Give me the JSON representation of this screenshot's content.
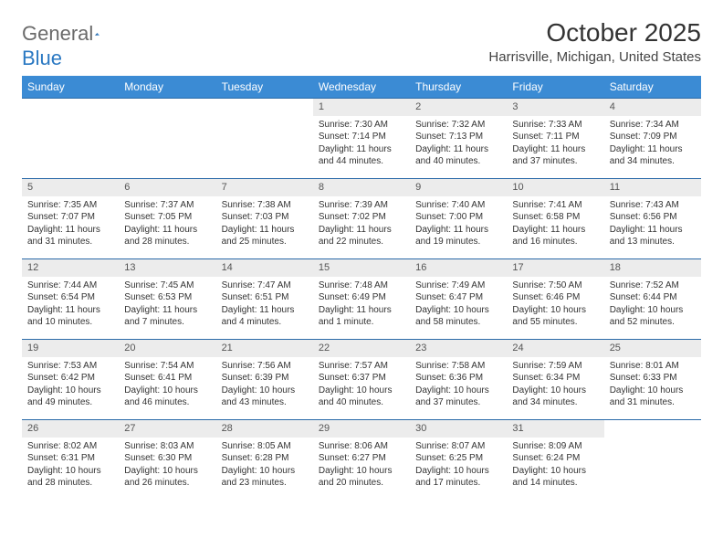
{
  "brand": {
    "word1": "General",
    "word2": "Blue"
  },
  "title": "October 2025",
  "location": "Harrisville, Michigan, United States",
  "colors": {
    "header_bg": "#3b8bd4",
    "header_text": "#ffffff",
    "row_border": "#2a6aa8",
    "daynum_bg": "#ececec",
    "brand_gray": "#6a6a6a",
    "brand_blue": "#2a78c2"
  },
  "typography": {
    "title_fontsize": 28,
    "location_fontsize": 15,
    "header_fontsize": 12,
    "cell_fontsize": 10
  },
  "calendar": {
    "type": "table",
    "columns": [
      "Sunday",
      "Monday",
      "Tuesday",
      "Wednesday",
      "Thursday",
      "Friday",
      "Saturday"
    ],
    "weeks": [
      [
        null,
        null,
        null,
        {
          "n": "1",
          "sr": "Sunrise: 7:30 AM",
          "ss": "Sunset: 7:14 PM",
          "d1": "Daylight: 11 hours",
          "d2": "and 44 minutes."
        },
        {
          "n": "2",
          "sr": "Sunrise: 7:32 AM",
          "ss": "Sunset: 7:13 PM",
          "d1": "Daylight: 11 hours",
          "d2": "and 40 minutes."
        },
        {
          "n": "3",
          "sr": "Sunrise: 7:33 AM",
          "ss": "Sunset: 7:11 PM",
          "d1": "Daylight: 11 hours",
          "d2": "and 37 minutes."
        },
        {
          "n": "4",
          "sr": "Sunrise: 7:34 AM",
          "ss": "Sunset: 7:09 PM",
          "d1": "Daylight: 11 hours",
          "d2": "and 34 minutes."
        }
      ],
      [
        {
          "n": "5",
          "sr": "Sunrise: 7:35 AM",
          "ss": "Sunset: 7:07 PM",
          "d1": "Daylight: 11 hours",
          "d2": "and 31 minutes."
        },
        {
          "n": "6",
          "sr": "Sunrise: 7:37 AM",
          "ss": "Sunset: 7:05 PM",
          "d1": "Daylight: 11 hours",
          "d2": "and 28 minutes."
        },
        {
          "n": "7",
          "sr": "Sunrise: 7:38 AM",
          "ss": "Sunset: 7:03 PM",
          "d1": "Daylight: 11 hours",
          "d2": "and 25 minutes."
        },
        {
          "n": "8",
          "sr": "Sunrise: 7:39 AM",
          "ss": "Sunset: 7:02 PM",
          "d1": "Daylight: 11 hours",
          "d2": "and 22 minutes."
        },
        {
          "n": "9",
          "sr": "Sunrise: 7:40 AM",
          "ss": "Sunset: 7:00 PM",
          "d1": "Daylight: 11 hours",
          "d2": "and 19 minutes."
        },
        {
          "n": "10",
          "sr": "Sunrise: 7:41 AM",
          "ss": "Sunset: 6:58 PM",
          "d1": "Daylight: 11 hours",
          "d2": "and 16 minutes."
        },
        {
          "n": "11",
          "sr": "Sunrise: 7:43 AM",
          "ss": "Sunset: 6:56 PM",
          "d1": "Daylight: 11 hours",
          "d2": "and 13 minutes."
        }
      ],
      [
        {
          "n": "12",
          "sr": "Sunrise: 7:44 AM",
          "ss": "Sunset: 6:54 PM",
          "d1": "Daylight: 11 hours",
          "d2": "and 10 minutes."
        },
        {
          "n": "13",
          "sr": "Sunrise: 7:45 AM",
          "ss": "Sunset: 6:53 PM",
          "d1": "Daylight: 11 hours",
          "d2": "and 7 minutes."
        },
        {
          "n": "14",
          "sr": "Sunrise: 7:47 AM",
          "ss": "Sunset: 6:51 PM",
          "d1": "Daylight: 11 hours",
          "d2": "and 4 minutes."
        },
        {
          "n": "15",
          "sr": "Sunrise: 7:48 AM",
          "ss": "Sunset: 6:49 PM",
          "d1": "Daylight: 11 hours",
          "d2": "and 1 minute."
        },
        {
          "n": "16",
          "sr": "Sunrise: 7:49 AM",
          "ss": "Sunset: 6:47 PM",
          "d1": "Daylight: 10 hours",
          "d2": "and 58 minutes."
        },
        {
          "n": "17",
          "sr": "Sunrise: 7:50 AM",
          "ss": "Sunset: 6:46 PM",
          "d1": "Daylight: 10 hours",
          "d2": "and 55 minutes."
        },
        {
          "n": "18",
          "sr": "Sunrise: 7:52 AM",
          "ss": "Sunset: 6:44 PM",
          "d1": "Daylight: 10 hours",
          "d2": "and 52 minutes."
        }
      ],
      [
        {
          "n": "19",
          "sr": "Sunrise: 7:53 AM",
          "ss": "Sunset: 6:42 PM",
          "d1": "Daylight: 10 hours",
          "d2": "and 49 minutes."
        },
        {
          "n": "20",
          "sr": "Sunrise: 7:54 AM",
          "ss": "Sunset: 6:41 PM",
          "d1": "Daylight: 10 hours",
          "d2": "and 46 minutes."
        },
        {
          "n": "21",
          "sr": "Sunrise: 7:56 AM",
          "ss": "Sunset: 6:39 PM",
          "d1": "Daylight: 10 hours",
          "d2": "and 43 minutes."
        },
        {
          "n": "22",
          "sr": "Sunrise: 7:57 AM",
          "ss": "Sunset: 6:37 PM",
          "d1": "Daylight: 10 hours",
          "d2": "and 40 minutes."
        },
        {
          "n": "23",
          "sr": "Sunrise: 7:58 AM",
          "ss": "Sunset: 6:36 PM",
          "d1": "Daylight: 10 hours",
          "d2": "and 37 minutes."
        },
        {
          "n": "24",
          "sr": "Sunrise: 7:59 AM",
          "ss": "Sunset: 6:34 PM",
          "d1": "Daylight: 10 hours",
          "d2": "and 34 minutes."
        },
        {
          "n": "25",
          "sr": "Sunrise: 8:01 AM",
          "ss": "Sunset: 6:33 PM",
          "d1": "Daylight: 10 hours",
          "d2": "and 31 minutes."
        }
      ],
      [
        {
          "n": "26",
          "sr": "Sunrise: 8:02 AM",
          "ss": "Sunset: 6:31 PM",
          "d1": "Daylight: 10 hours",
          "d2": "and 28 minutes."
        },
        {
          "n": "27",
          "sr": "Sunrise: 8:03 AM",
          "ss": "Sunset: 6:30 PM",
          "d1": "Daylight: 10 hours",
          "d2": "and 26 minutes."
        },
        {
          "n": "28",
          "sr": "Sunrise: 8:05 AM",
          "ss": "Sunset: 6:28 PM",
          "d1": "Daylight: 10 hours",
          "d2": "and 23 minutes."
        },
        {
          "n": "29",
          "sr": "Sunrise: 8:06 AM",
          "ss": "Sunset: 6:27 PM",
          "d1": "Daylight: 10 hours",
          "d2": "and 20 minutes."
        },
        {
          "n": "30",
          "sr": "Sunrise: 8:07 AM",
          "ss": "Sunset: 6:25 PM",
          "d1": "Daylight: 10 hours",
          "d2": "and 17 minutes."
        },
        {
          "n": "31",
          "sr": "Sunrise: 8:09 AM",
          "ss": "Sunset: 6:24 PM",
          "d1": "Daylight: 10 hours",
          "d2": "and 14 minutes."
        },
        null
      ]
    ]
  }
}
